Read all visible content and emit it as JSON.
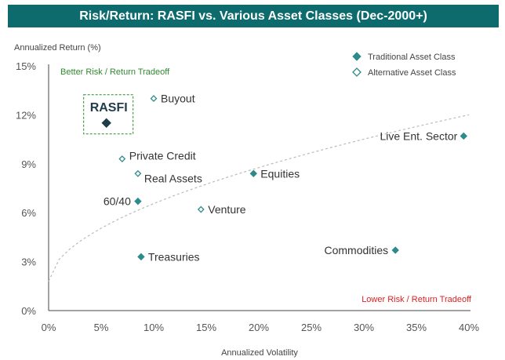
{
  "title": "Risk/Return: RASFI vs. Various Asset Classes (Dec-2000+)",
  "colors": {
    "title_bg": "#0d6b6e",
    "traditional": "#2e8b8b",
    "alternative": "#2e8b8b",
    "rasfi": "#1f3c4a",
    "better": "#2e8b2e",
    "lower": "#e02020",
    "frontier": "#bbbbbb",
    "axis": "#444444"
  },
  "chart_data": {
    "type": "scatter",
    "title": "Risk/Return: RASFI vs. Various Asset Classes (Dec-2000+)",
    "xlabel": "Annualized Volatility",
    "ylabel": "Annualized Return (%)",
    "xlim": [
      0,
      40
    ],
    "ylim": [
      0,
      15
    ],
    "x_ticks": [
      0,
      5,
      10,
      15,
      20,
      25,
      30,
      35,
      40
    ],
    "x_tick_labels": [
      "0%",
      "5%",
      "10%",
      "15%",
      "20%",
      "25%",
      "30%",
      "35%",
      "40%"
    ],
    "y_ticks": [
      0,
      3,
      6,
      9,
      12,
      15
    ],
    "y_tick_labels": [
      "0%",
      "3%",
      "6%",
      "9%",
      "12%",
      "15%"
    ],
    "grid": false,
    "legend_position": "top-right",
    "legend": [
      {
        "label": "Traditional Asset Class",
        "marker": "filled-diamond"
      },
      {
        "label": "Alternative Asset Class",
        "marker": "hollow-diamond"
      }
    ],
    "annotations": {
      "better": "Better Risk / Return Tradeoff",
      "lower": "Lower Risk / Return Tradeoff"
    },
    "frontier": {
      "x": [
        0,
        40
      ],
      "y_start": 1.8,
      "y_end": 12.0
    },
    "points": [
      {
        "label": "RASFI",
        "x": 5.5,
        "y": 11.5,
        "kind": "rasfi"
      },
      {
        "label": "Buyout",
        "x": 10.0,
        "y": 13.0,
        "kind": "alternative"
      },
      {
        "label": "Private Credit",
        "x": 7.0,
        "y": 9.3,
        "kind": "alternative"
      },
      {
        "label": "Real Assets",
        "x": 8.5,
        "y": 8.4,
        "kind": "alternative"
      },
      {
        "label": "Equities",
        "x": 19.5,
        "y": 8.4,
        "kind": "traditional"
      },
      {
        "label": "60/40",
        "x": 8.5,
        "y": 6.7,
        "kind": "traditional"
      },
      {
        "label": "Venture",
        "x": 14.5,
        "y": 6.2,
        "kind": "alternative"
      },
      {
        "label": "Treasuries",
        "x": 8.8,
        "y": 3.3,
        "kind": "traditional"
      },
      {
        "label": "Commodities",
        "x": 33.0,
        "y": 3.7,
        "kind": "traditional"
      },
      {
        "label": "Live Ent. Sector",
        "x": 39.5,
        "y": 10.7,
        "kind": "traditional"
      }
    ]
  }
}
